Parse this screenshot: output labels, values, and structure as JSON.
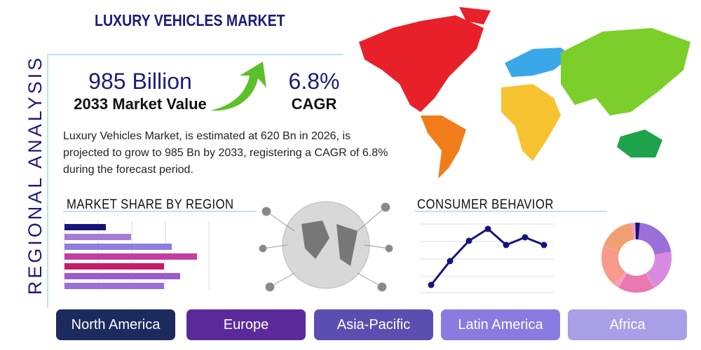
{
  "title": "LUXURY VEHICLES MARKET",
  "side_label": "REGIONAL ANALYSIS",
  "market_value": {
    "value": "985 Billion",
    "label": "2033 Market Value"
  },
  "cagr": {
    "value": "6.8%",
    "label": "CAGR"
  },
  "description": [
    "Luxury Vehicles Market, is estimated at 620 Bn in 2026, is",
    "projected to grow to 985 Bn by 2033, registering a CAGR of 6.8%",
    "during the forecast period."
  ],
  "sections": {
    "market_share": "MARKET SHARE BY REGION",
    "consumer_behavior": "CONSUMER BEHAVIOR"
  },
  "regions": [
    "North America",
    "Europe",
    "Asia-Pacific",
    "Latin America",
    "Africa"
  ]
}
